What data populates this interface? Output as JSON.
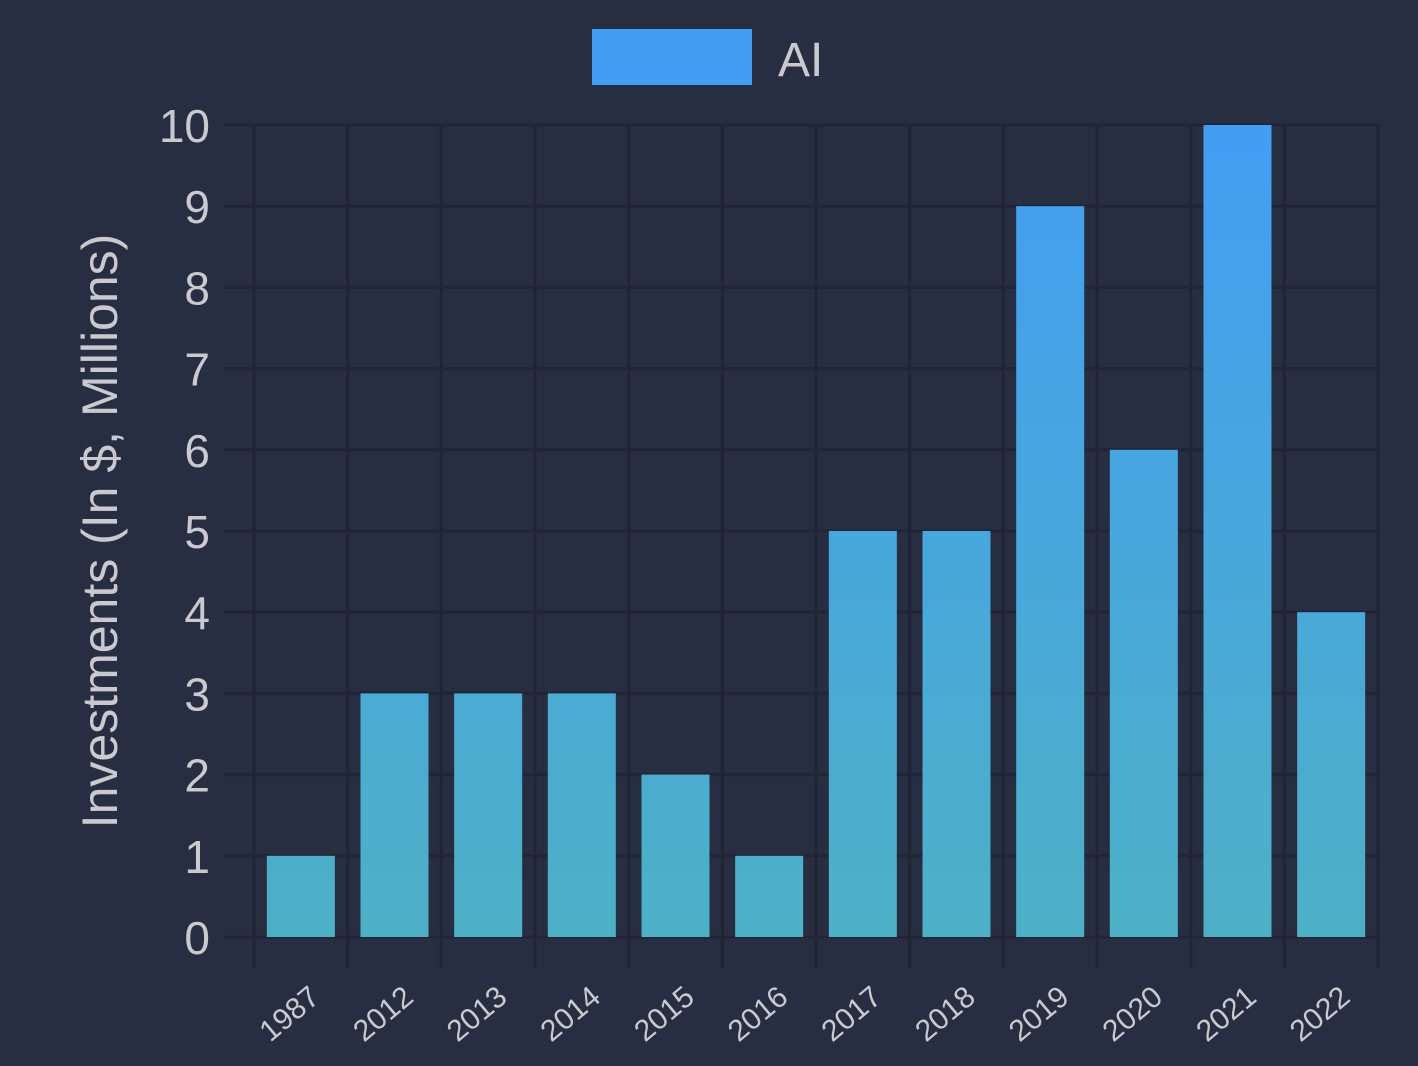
{
  "chart_data": {
    "type": "bar",
    "categories": [
      "1987",
      "2012",
      "2013",
      "2014",
      "2015",
      "2016",
      "2017",
      "2018",
      "2019",
      "2020",
      "2021",
      "2022"
    ],
    "series": [
      {
        "name": "AI",
        "values": [
          1,
          3,
          3,
          3,
          2,
          1,
          5,
          5,
          9,
          6,
          10,
          4
        ]
      }
    ],
    "title": "",
    "xlabel": "",
    "ylabel": "Investments (In $, Millions)",
    "ylim": [
      0,
      10
    ],
    "yticks": [
      0,
      1,
      2,
      3,
      4,
      5,
      6,
      7,
      8,
      9,
      10
    ],
    "grid": true,
    "legend": "top-center"
  },
  "colors": {
    "background": "#272e41",
    "grid": "#1f2535",
    "text": "#c8cad0",
    "bar_top": "#429ef3",
    "bar_bottom": "#4eb0c6",
    "legend_swatch": "#429ef3"
  }
}
